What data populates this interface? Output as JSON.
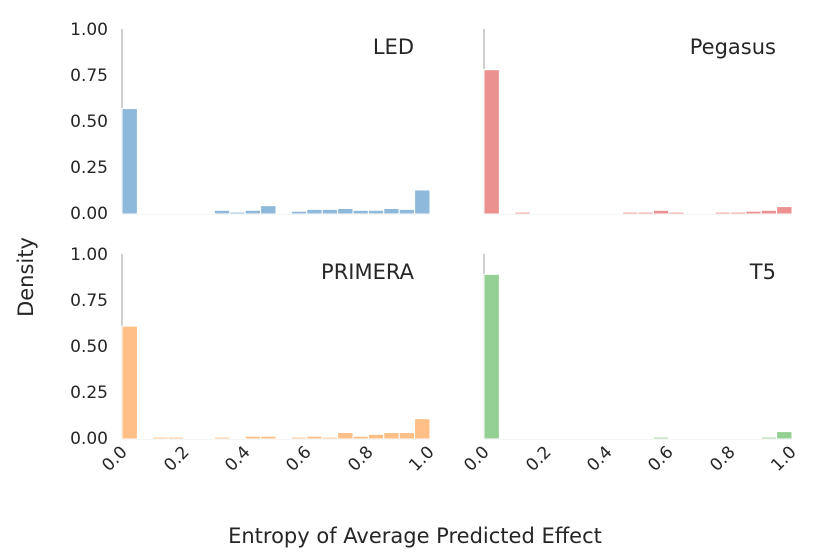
{
  "chart_data": {
    "type": "bar",
    "xlabel": "Entropy of Average Predicted Effect",
    "ylabel": "Density",
    "xlim": [
      0,
      1
    ],
    "ylim": [
      0,
      1
    ],
    "bins": 20,
    "yticks": [
      "0.00",
      "0.25",
      "0.50",
      "0.75",
      "1.00"
    ],
    "xticks": [
      "0.0",
      "0.2",
      "0.4",
      "0.6",
      "0.8",
      "1.0"
    ],
    "panels": [
      {
        "title": "LED",
        "color": "#8fb9da",
        "values": [
          0.57,
          0.0,
          0.005,
          0.005,
          0.005,
          0.0,
          0.02,
          0.01,
          0.02,
          0.045,
          0.0,
          0.015,
          0.025,
          0.025,
          0.03,
          0.02,
          0.02,
          0.03,
          0.025,
          0.13
        ]
      },
      {
        "title": "Pegasus",
        "color": "#eb9291",
        "values": [
          0.78,
          0.005,
          0.01,
          0.005,
          0.005,
          0.005,
          0.005,
          0.005,
          0.005,
          0.01,
          0.01,
          0.02,
          0.01,
          0.005,
          0.005,
          0.01,
          0.01,
          0.015,
          0.02,
          0.04
        ]
      },
      {
        "title": "PRIMERA",
        "color": "#ffbf86",
        "values": [
          0.61,
          0.0,
          0.01,
          0.01,
          0.005,
          0.005,
          0.01,
          0.005,
          0.015,
          0.015,
          0.005,
          0.01,
          0.015,
          0.01,
          0.035,
          0.015,
          0.025,
          0.035,
          0.035,
          0.11
        ]
      },
      {
        "title": "T5",
        "color": "#94cf94",
        "values": [
          0.89,
          0.0,
          0.005,
          0.0,
          0.005,
          0.005,
          0.005,
          0.0,
          0.0,
          0.005,
          0.0,
          0.01,
          0.005,
          0.005,
          0.005,
          0.005,
          0.005,
          0.005,
          0.01,
          0.04
        ]
      }
    ]
  }
}
